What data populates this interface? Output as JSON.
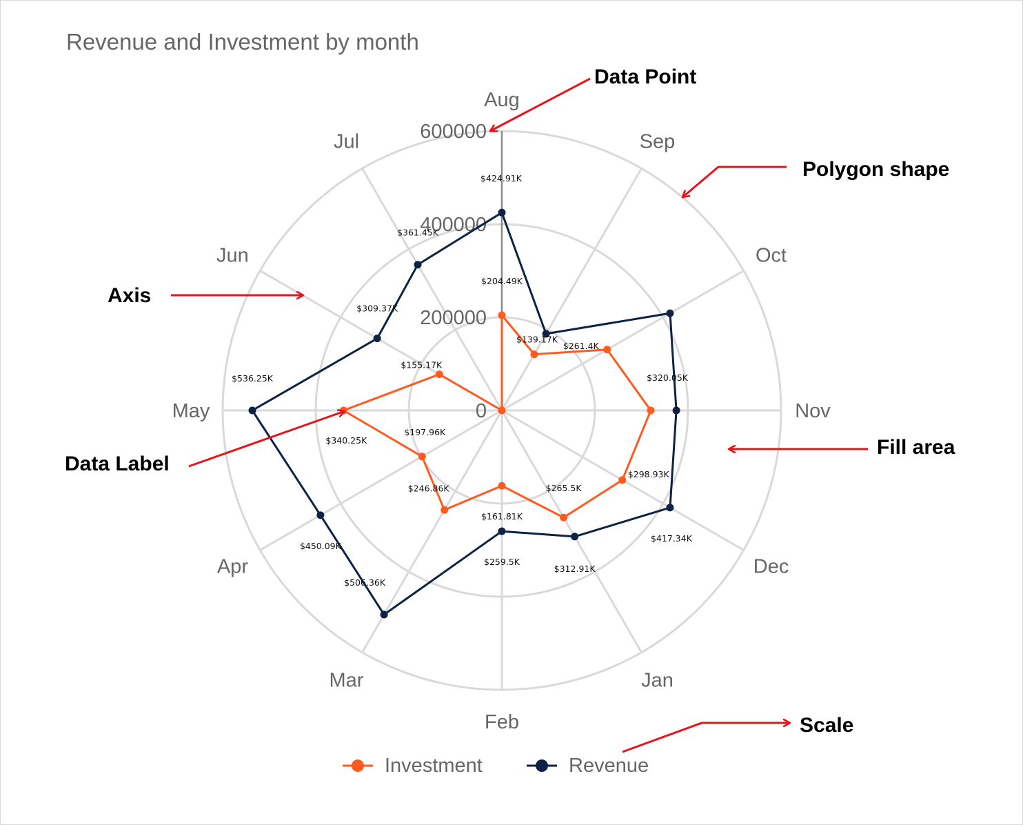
{
  "chart_data": {
    "type": "radar",
    "title": "Revenue and Investment by month",
    "categories": [
      "Aug",
      "Sep",
      "Oct",
      "Nov",
      "Dec",
      "Jan",
      "Feb",
      "Mar",
      "Apr",
      "May",
      "Jun",
      "Jul"
    ],
    "scale": {
      "min": 0,
      "max": 600000,
      "ticks": [
        "0",
        "200000",
        "400000",
        "600000"
      ]
    },
    "grid": "circular",
    "legend_position": "bottom",
    "series": [
      {
        "name": "Investment",
        "color": "#FF5A1F",
        "values": [
          204490,
          139170,
          261400,
          320050,
          298930,
          265500,
          161810,
          246860,
          197960,
          340250,
          155170,
          0
        ],
        "labels": [
          "$204.49K",
          "$139.17K",
          "$261.4K",
          "$320.05K",
          "$298.93K",
          "$265.5K",
          "$161.81K",
          "$246.86K",
          "$197.96K",
          "$340.25K",
          "$155.17K",
          ""
        ]
      },
      {
        "name": "Revenue",
        "color": "#0D2244",
        "values": [
          424910,
          190000,
          417340,
          375000,
          417340,
          312910,
          259500,
          506360,
          450090,
          536250,
          309370,
          361450
        ],
        "labels": [
          "$424.91K",
          "",
          "",
          "",
          "$417.34K",
          "$312.91K",
          "$259.5K",
          "$506.36K",
          "$450.09K",
          "$536.25K",
          "$309.37K",
          "$361.45K"
        ]
      }
    ]
  },
  "annotations": [
    {
      "id": "data-point",
      "text": "Data Point"
    },
    {
      "id": "polygon-shape",
      "text": "Polygon shape"
    },
    {
      "id": "axis",
      "text": "Axis"
    },
    {
      "id": "fill-area",
      "text": "Fill area"
    },
    {
      "id": "data-label",
      "text": "Data Label"
    },
    {
      "id": "scale",
      "text": "Scale"
    }
  ],
  "colors": {
    "grid": "#d9d9d9",
    "axis_line": "#8a8a8a",
    "annotation_arrow": "#e8141c"
  }
}
